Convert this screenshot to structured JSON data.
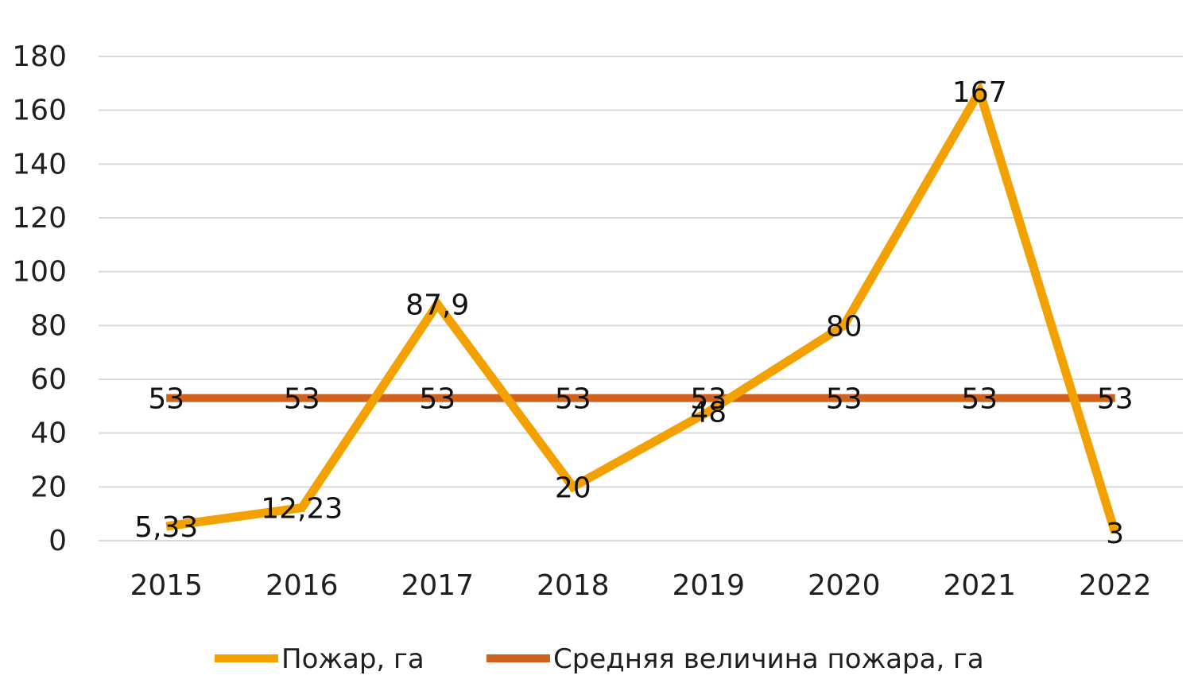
{
  "chart_data": {
    "type": "line",
    "title": "",
    "xlabel": "",
    "ylabel": "",
    "categories": [
      "2015",
      "2016",
      "2017",
      "2018",
      "2019",
      "2020",
      "2021",
      "2022"
    ],
    "ylim": [
      0,
      180
    ],
    "yticks": [
      "0",
      "20",
      "40",
      "60",
      "80",
      "100",
      "120",
      "140",
      "160",
      "180"
    ],
    "grid": true,
    "legend_position": "bottom",
    "series": [
      {
        "name": "Пожар, га",
        "color": "#F2A100",
        "values": [
          5.33,
          12.23,
          87.9,
          20,
          48,
          80,
          167,
          3
        ],
        "labels": [
          "5,33",
          "12,23",
          "87,9",
          "20",
          "48",
          "80",
          "167",
          "3"
        ]
      },
      {
        "name": "Средняя величина пожара, га",
        "color": "#D0621E",
        "values": [
          53,
          53,
          53,
          53,
          53,
          53,
          53,
          53
        ],
        "labels": [
          "53",
          "53",
          "53",
          "53",
          "53",
          "53",
          "53",
          "53"
        ]
      }
    ]
  }
}
